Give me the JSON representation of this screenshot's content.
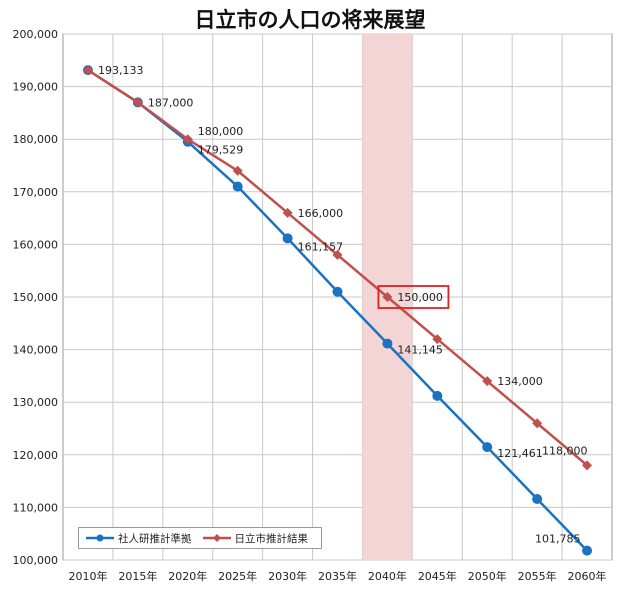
{
  "chart_data": {
    "type": "line",
    "title": "日立市の人口の将来展望",
    "categories": [
      "2010年",
      "2015年",
      "2020年",
      "2025年",
      "2030年",
      "2035年",
      "2040年",
      "2045年",
      "2050年",
      "2055年",
      "2060年"
    ],
    "ylim": [
      100000,
      200000
    ],
    "yticks": [
      "100,000",
      "110,000",
      "120,000",
      "130,000",
      "140,000",
      "150,000",
      "160,000",
      "170,000",
      "180,000",
      "190,000",
      "200,000"
    ],
    "grid": true,
    "legend_position": "bottom-left",
    "highlight_category": "2040年",
    "series": [
      {
        "name": "社人研推計準拠",
        "color": "#1a73c2",
        "marker": "circle",
        "values": [
          193133,
          187000,
          179529,
          171000,
          161157,
          151000,
          141145,
          131200,
          121461,
          111600,
          101785
        ],
        "labels": [
          "",
          "",
          "179,529",
          "",
          "161,157",
          "",
          "141,145",
          "",
          "121,461",
          "",
          "101,785"
        ]
      },
      {
        "name": "日立市推計結果",
        "color": "#c0504d",
        "marker": "diamond",
        "values": [
          193133,
          187000,
          180000,
          174000,
          166000,
          158000,
          150000,
          142000,
          134000,
          126000,
          118000
        ],
        "labels": [
          "193,133",
          "187,000",
          "180,000",
          "",
          "166,000",
          "",
          "150,000",
          "",
          "134,000",
          "",
          "118,000"
        ]
      }
    ]
  }
}
